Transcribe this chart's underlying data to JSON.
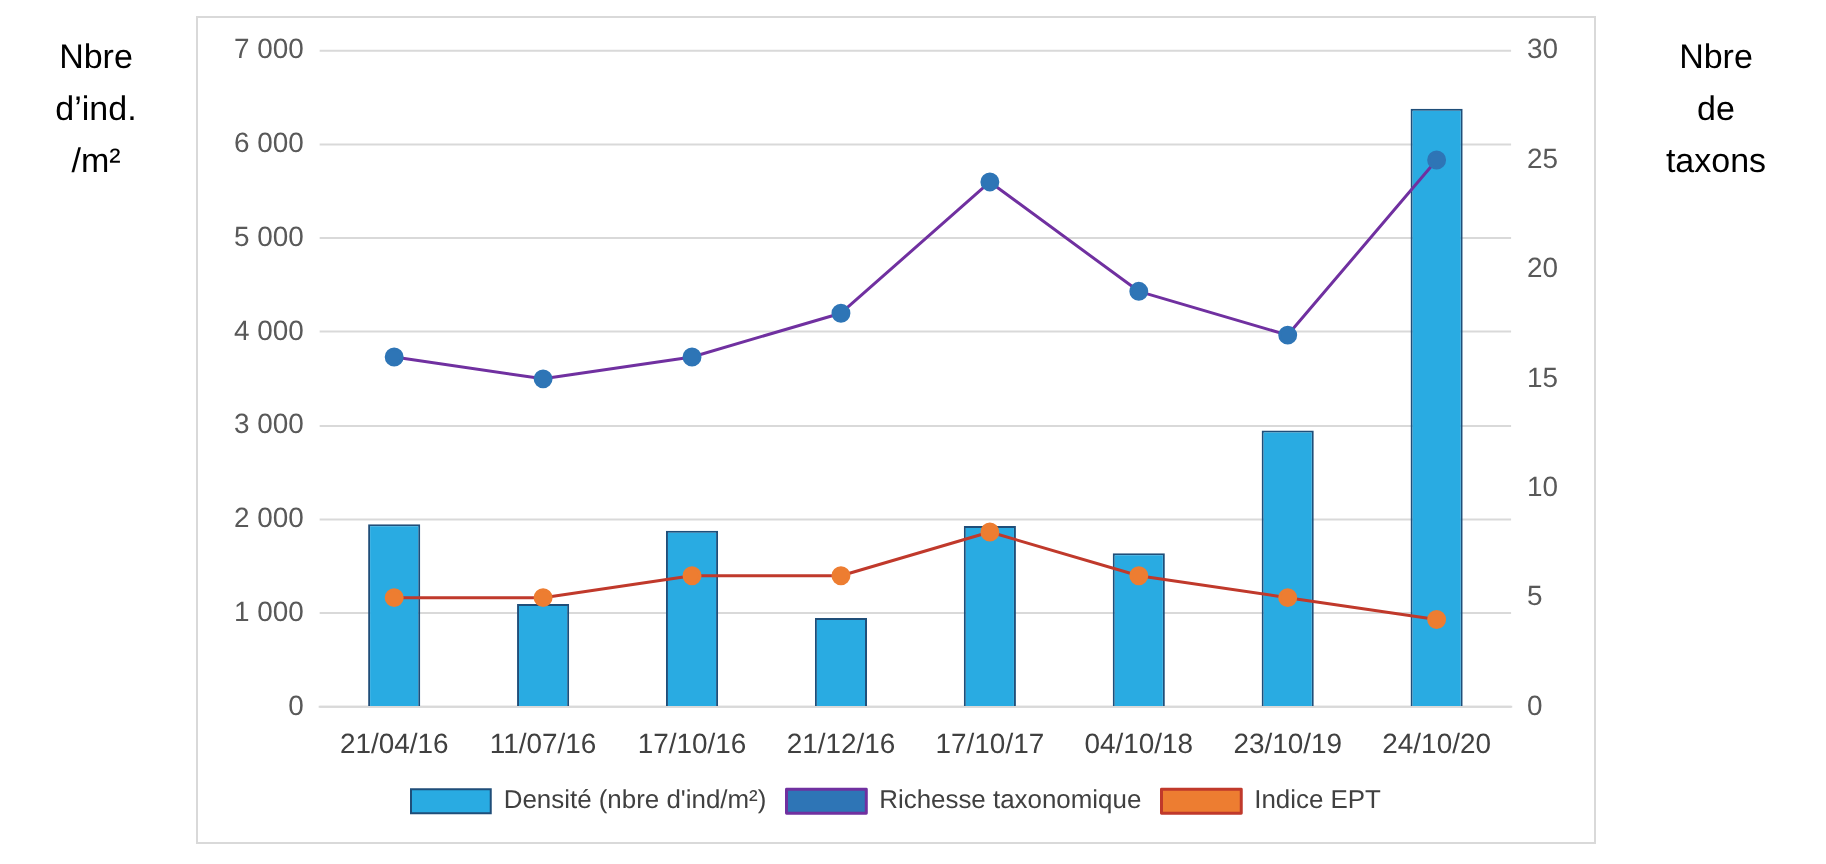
{
  "chart_data": {
    "type": "bar",
    "ylabel": "Nbre d’ind. /m²",
    "y2label": "Nbre de taxons",
    "categories": [
      "21/04/16",
      "11/07/16",
      "17/10/16",
      "21/12/16",
      "17/10/17",
      "04/10/18",
      "23/10/19",
      "24/10/20"
    ],
    "series": [
      {
        "name": "Densité (nbre d'ind/m²)",
        "color": "#29abe2",
        "values": [
          1950,
          1100,
          1880,
          950,
          1930,
          1640,
          2950,
          6380
        ]
      },
      {
        "name": "Richesse taxonomique",
        "type": "line",
        "axis": "y2",
        "color": "#7030a0",
        "colors": [
          "#2e75b6",
          "#2e75b6",
          "#2e75b6",
          "#2e75b6",
          "#2e75b6",
          "#2e75b6",
          "#2e75b6",
          "#2e75b6"
        ],
        "values": [
          16,
          15,
          16,
          18,
          24,
          19,
          17,
          25
        ]
      },
      {
        "name": "Indice EPT",
        "type": "line",
        "axis": "y2",
        "color": "#c0392b",
        "colors": [
          "#ed7d31",
          "#ed7d31",
          "#ed7d31",
          "#ed7d31",
          "#ed7d31",
          "#ed7d31",
          "#ed7d31",
          "#ed7d31"
        ],
        "values": [
          5,
          5,
          6,
          6,
          8,
          6,
          5,
          4
        ]
      }
    ],
    "ylim": [
      0,
      7000
    ],
    "yticks": [
      {
        "value": 0,
        "label": "0"
      },
      {
        "value": 1000,
        "label": "1 000"
      },
      {
        "value": 2000,
        "label": "2 000"
      },
      {
        "value": 3000,
        "label": "3 000"
      },
      {
        "value": 4000,
        "label": "4 000"
      },
      {
        "value": 5000,
        "label": "5 000"
      },
      {
        "value": 6000,
        "label": "6 000"
      },
      {
        "value": 7000,
        "label": "7 000"
      }
    ],
    "y2lim": [
      0,
      30
    ],
    "y2ticks": [
      0,
      5,
      10,
      15,
      20,
      25,
      30
    ],
    "grid": "y",
    "legend": "bottom",
    "marker": "circle",
    "line_style": "solid"
  }
}
